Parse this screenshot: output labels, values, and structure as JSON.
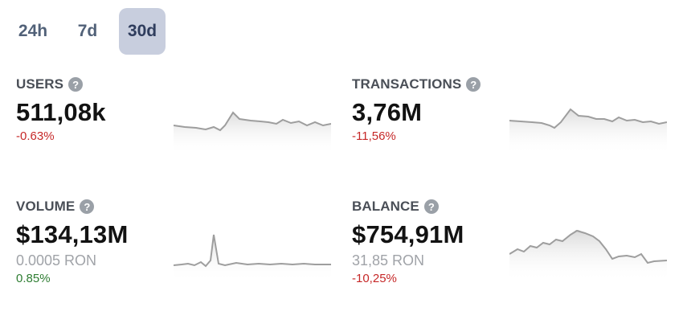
{
  "tabs": [
    {
      "label": "24h",
      "active": false
    },
    {
      "label": "7d",
      "active": false
    },
    {
      "label": "30d",
      "active": true
    }
  ],
  "colors": {
    "negative": "#c62828",
    "positive": "#2e7d32",
    "active_tab_bg": "#c8cede",
    "sparkline": "#9e9e9e"
  },
  "metrics": {
    "users": {
      "label": "USERS",
      "value": "511,08k",
      "change": "-0.63%",
      "change_dir": "negative"
    },
    "transactions": {
      "label": "TRANSACTIONS",
      "value": "3,76M",
      "change": "-11,56%",
      "change_dir": "negative"
    },
    "volume": {
      "label": "VOLUME",
      "value": "$134,13M",
      "sub": "0.0005 RON",
      "change": "0.85%",
      "change_dir": "positive"
    },
    "balance": {
      "label": "BALANCE",
      "value": "$754,91M",
      "sub": "31,85 RON",
      "change": "-10,25%",
      "change_dir": "negative"
    }
  },
  "icons": {
    "help": "question-circle-icon"
  }
}
